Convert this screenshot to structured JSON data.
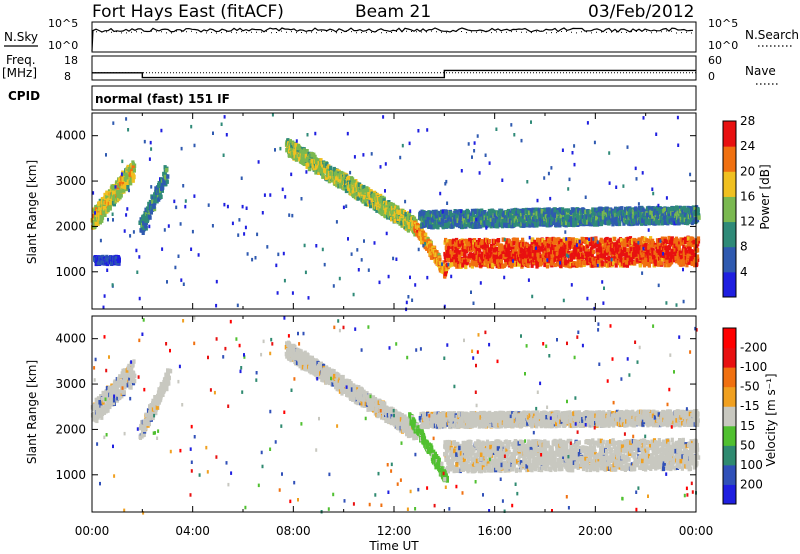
{
  "header": {
    "station": "Fort Hays East (fitACF)",
    "beam": "Beam 21",
    "date": "03/Feb/2012"
  },
  "noise_panel": {
    "left_label": "N.Sky",
    "right_label": "N.Search",
    "left_ticks": [
      "10^5",
      "10^0"
    ],
    "right_ticks": [
      "10^5",
      "10^0"
    ]
  },
  "freq_panel": {
    "left_label_top": "Freq.",
    "left_label_unit": "[MHz]",
    "right_label": "Nave",
    "left_ticks": [
      "18",
      "8"
    ],
    "right_ticks": [
      "60",
      "0"
    ],
    "freq_steps": [
      {
        "t0": 0.0,
        "t1": 2.0,
        "mhz": 11.0
      },
      {
        "t0": 2.0,
        "t1": 14.0,
        "mhz": 9.0
      },
      {
        "t0": 14.0,
        "t1": 24.0,
        "mhz": 12.0
      }
    ],
    "nave_level": 18
  },
  "cpid": {
    "label": "CPID",
    "value": "normal (fast) 151 IF"
  },
  "chart_data": [
    {
      "type": "heatmap",
      "title": "",
      "ylabel": "Slant Range [km]",
      "xlabel": "",
      "xlim": [
        0,
        24
      ],
      "ylim": [
        180,
        4500
      ],
      "yticks": [
        "1000",
        "2000",
        "3000",
        "4000"
      ],
      "ytick_values": [
        1000,
        2000,
        3000,
        4000
      ],
      "colorbar_label": "Power [dB]",
      "colorbar_ticks": [
        "4",
        "8",
        "12",
        "16",
        "20",
        "24",
        "28"
      ],
      "colorbar_colors": [
        "#1f1fe0",
        "#2f5ab0",
        "#2f8a78",
        "#7ab850",
        "#f0c020",
        "#f07010",
        "#e81010"
      ],
      "echo_regions": [
        {
          "name": "early band",
          "t_start": 0.0,
          "t_end": 1.6,
          "r_start": 2200,
          "r_end": 3300,
          "width": 450,
          "power": 22
        },
        {
          "name": "short patch",
          "t_start": 0.1,
          "t_end": 1.0,
          "r_start": 1300,
          "r_end": 1300,
          "width": 150,
          "power": 8
        },
        {
          "name": "rising band",
          "t_start": 1.9,
          "t_end": 2.9,
          "r_start": 2000,
          "r_end": 3200,
          "width": 350,
          "power": 14
        },
        {
          "name": "descending band",
          "t_start": 7.7,
          "t_end": 12.8,
          "r_start": 3800,
          "r_end": 2050,
          "width": 350,
          "power": 20
        },
        {
          "name": "steep descent",
          "t_start": 12.8,
          "t_end": 14.0,
          "r_start": 2050,
          "r_end": 1050,
          "width": 250,
          "power": 25
        },
        {
          "name": "strong low band",
          "t_start": 14.0,
          "t_end": 24.0,
          "r_start": 1450,
          "r_end": 1500,
          "width": 600,
          "power": 30
        },
        {
          "name": "upper band",
          "t_start": 13.0,
          "t_end": 24.0,
          "r_start": 2200,
          "r_end": 2300,
          "width": 350,
          "power": 14
        }
      ]
    },
    {
      "type": "heatmap",
      "title": "",
      "ylabel": "Slant Range [km]",
      "xlabel": "Time UT",
      "xlim": [
        0,
        24
      ],
      "ylim": [
        180,
        4500
      ],
      "xticks": [
        "00:00",
        "04:00",
        "08:00",
        "12:00",
        "16:00",
        "20:00",
        "00:00"
      ],
      "xtick_values": [
        0,
        4,
        8,
        12,
        16,
        20,
        24
      ],
      "yticks": [
        "1000",
        "2000",
        "3000",
        "4000"
      ],
      "ytick_values": [
        1000,
        2000,
        3000,
        4000
      ],
      "colorbar_label": "Velocity [m s⁻¹]",
      "colorbar_ticks": [
        "200",
        "100",
        "50",
        "15",
        "-15",
        "-50",
        "-100",
        "-200"
      ],
      "colorbar_colors": [
        "#1f1fe0",
        "#3050b8",
        "#2f8a70",
        "#50c030",
        "#c8c8c0",
        "#f0a020",
        "#f07010",
        "#e81010",
        "#ff0000"
      ],
      "echo_regions": [
        {
          "name": "early band",
          "t_start": 0.0,
          "t_end": 1.6,
          "r_start": 2400,
          "r_end": 3300,
          "width": 500,
          "velocity": 0
        },
        {
          "name": "rising band",
          "t_start": 1.9,
          "t_end": 3.0,
          "r_start": 2000,
          "r_end": 3200,
          "width": 300,
          "velocity": 0
        },
        {
          "name": "descending band",
          "t_start": 7.7,
          "t_end": 12.8,
          "r_start": 3800,
          "r_end": 2000,
          "width": 350,
          "velocity": 0
        },
        {
          "name": "green descent",
          "t_start": 12.6,
          "t_end": 14.0,
          "r_start": 2300,
          "r_end": 1000,
          "width": 200,
          "velocity": 30
        },
        {
          "name": "grey low band",
          "t_start": 14.0,
          "t_end": 24.0,
          "r_start": 1450,
          "r_end": 1500,
          "width": 650,
          "velocity": 0
        },
        {
          "name": "upper band",
          "t_start": 13.0,
          "t_end": 24.0,
          "r_start": 2250,
          "r_end": 2300,
          "width": 300,
          "velocity": 0
        }
      ]
    }
  ]
}
